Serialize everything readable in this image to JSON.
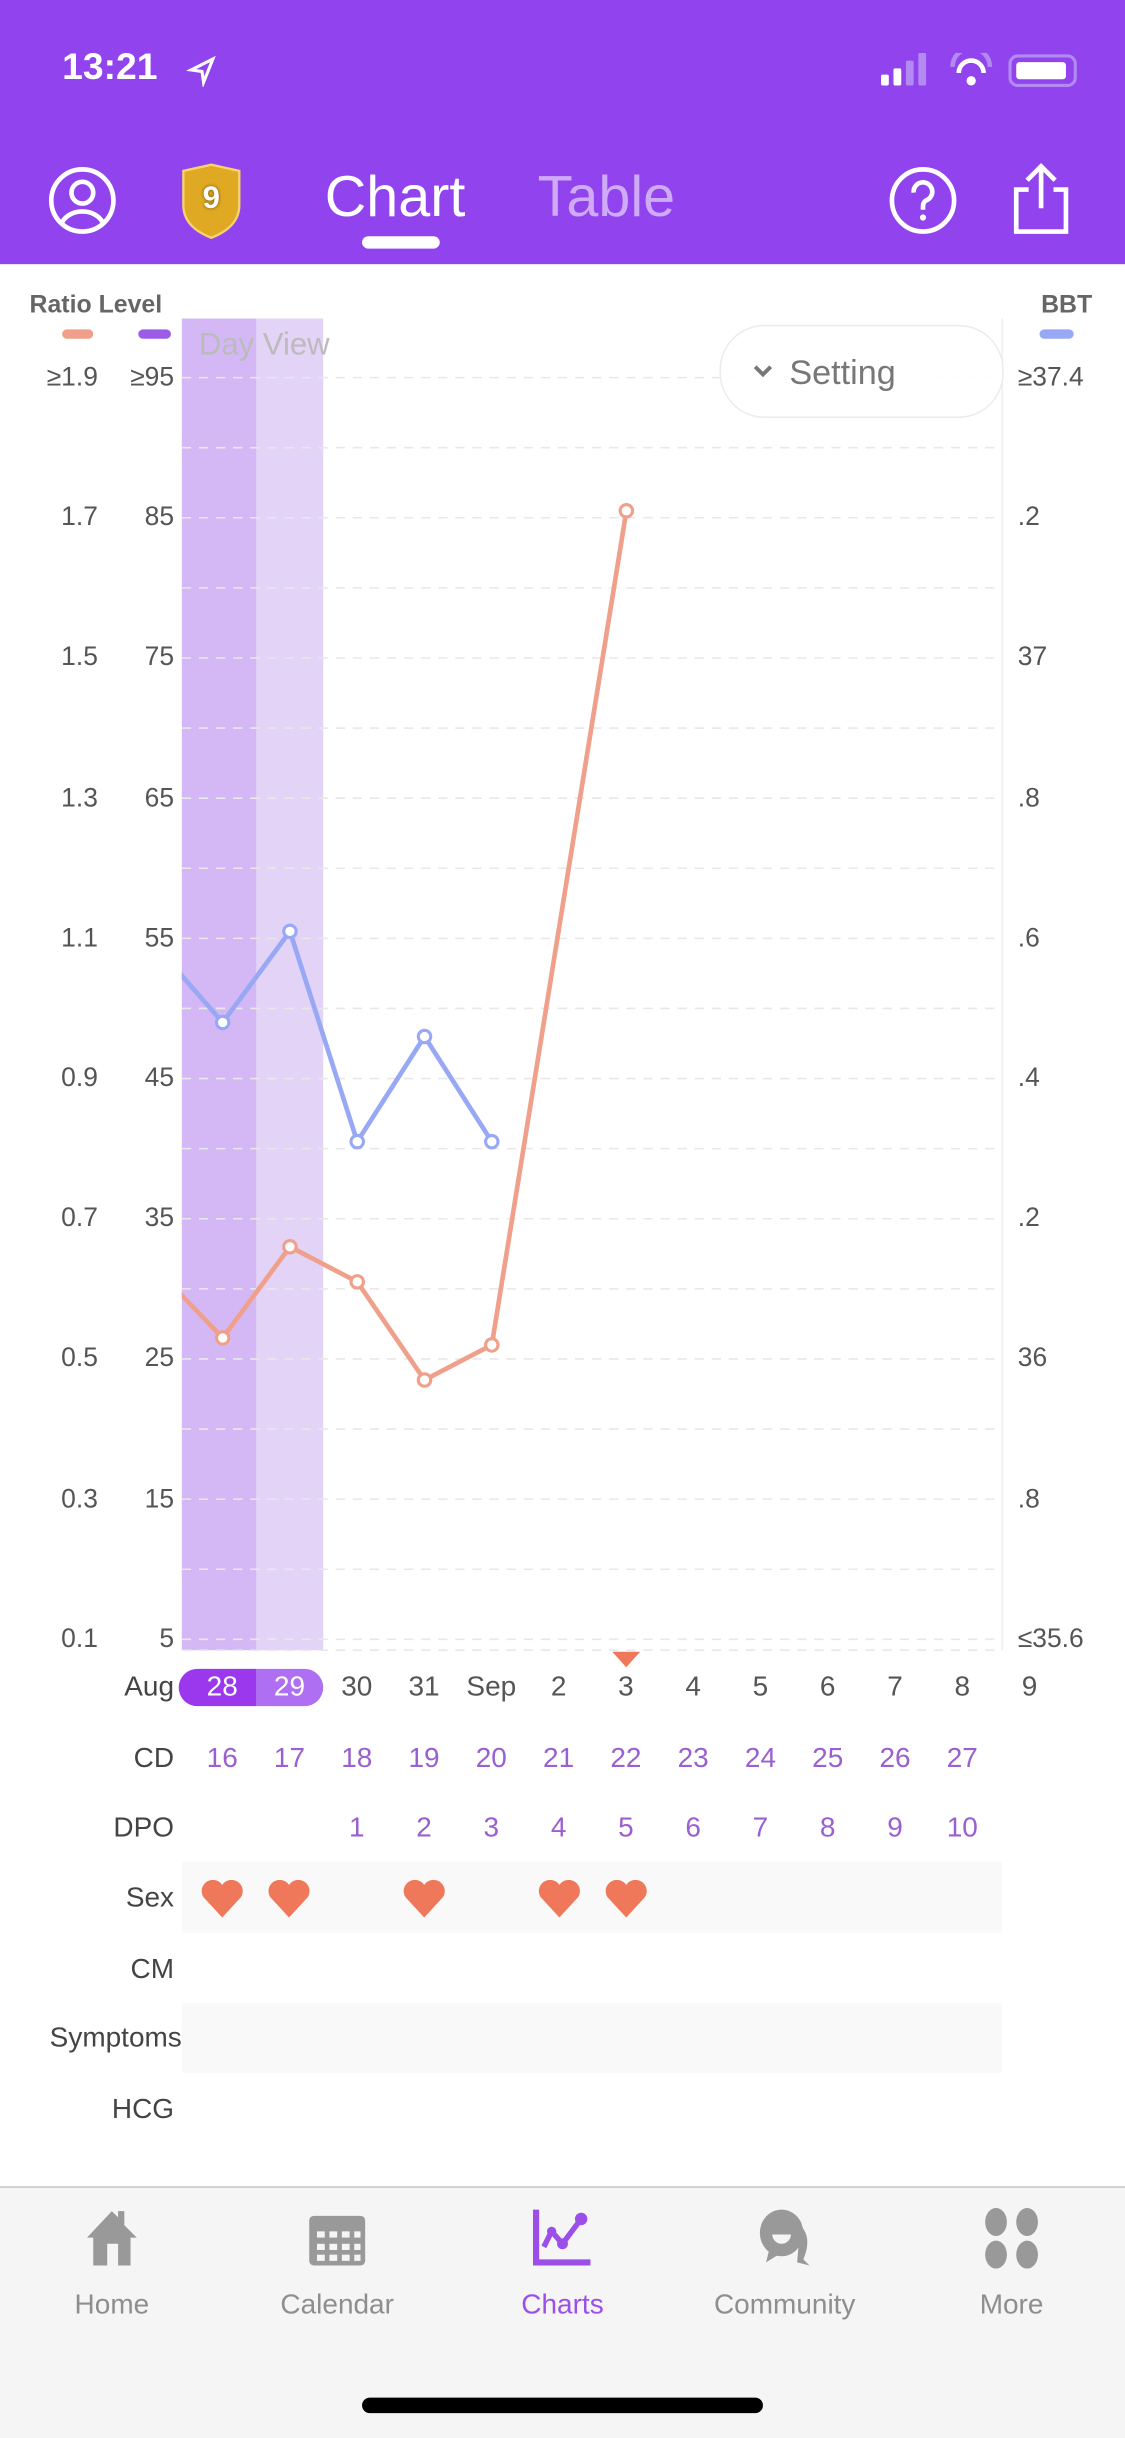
{
  "status_bar": {
    "time": "13:21"
  },
  "header": {
    "badge_level": "9",
    "tabs": [
      {
        "label": "Chart",
        "active": true
      },
      {
        "label": "Table",
        "active": false
      }
    ]
  },
  "legend": {
    "left_title": "Ratio Level",
    "right_title": "BBT",
    "day_view": "Day View",
    "setting_label": "Setting"
  },
  "colors": {
    "brand": "#9143ed",
    "ratio": "#f0a08a",
    "level": "#9b5de5",
    "bbt": "#98a8f4",
    "heart": "#ef775a",
    "cd_text": "#9a5fd0"
  },
  "axes": {
    "ratio_ticks": [
      "≥1.9",
      "1.7",
      "1.5",
      "1.3",
      "1.1",
      "0.9",
      "0.7",
      "0.5",
      "0.3",
      "0.1"
    ],
    "level_ticks": [
      "≥95",
      "85",
      "75",
      "65",
      "55",
      "45",
      "35",
      "25",
      "15",
      "5"
    ],
    "bbt_ticks": [
      "≥37.4",
      ".2",
      "37",
      ".8",
      ".6",
      ".4",
      ".2",
      "36",
      ".8",
      "≤35.6"
    ]
  },
  "dates": {
    "month_label": "Aug",
    "days": [
      "28",
      "29",
      "30",
      "31",
      "Sep",
      "2",
      "3",
      "4",
      "5",
      "6",
      "7",
      "8",
      "9"
    ],
    "selected": [
      "28",
      "29"
    ]
  },
  "rows": {
    "cd_label": "CD",
    "cd": [
      "16",
      "17",
      "18",
      "19",
      "20",
      "21",
      "22",
      "23",
      "24",
      "25",
      "26",
      "27"
    ],
    "dpo_label": "DPO",
    "dpo": [
      "",
      "",
      "1",
      "2",
      "3",
      "4",
      "5",
      "6",
      "7",
      "8",
      "9",
      "10"
    ],
    "sex_label": "Sex",
    "sex": [
      true,
      true,
      false,
      true,
      false,
      true,
      true,
      false,
      false,
      false,
      false,
      false
    ],
    "cm_label": "CM",
    "symptoms_label": "Symptoms",
    "hcg_label": "HCG"
  },
  "chart_data": {
    "type": "line",
    "x": [
      "Aug 27",
      "Aug 28",
      "Aug 29",
      "Aug 30",
      "Aug 31",
      "Sep 1",
      "Sep 2",
      "Sep 3"
    ],
    "series": [
      {
        "name": "Ratio",
        "axis": "left",
        "values": [
          0.63,
          0.53,
          0.66,
          0.61,
          0.47,
          0.52,
          null,
          1.71
        ]
      },
      {
        "name": "BBT",
        "axis": "right",
        "values": [
          36.59,
          36.48,
          36.61,
          36.31,
          36.46,
          36.31,
          null,
          null
        ]
      }
    ],
    "ratio_range": [
      0.1,
      1.9
    ],
    "level_range": [
      5,
      95
    ],
    "bbt_range": [
      35.6,
      37.4
    ],
    "marker_day": "Sep 3",
    "grid": true
  },
  "bottom_nav": [
    {
      "label": "Home",
      "icon": "home-icon"
    },
    {
      "label": "Calendar",
      "icon": "calendar-icon"
    },
    {
      "label": "Charts",
      "icon": "charts-icon",
      "active": true
    },
    {
      "label": "Community",
      "icon": "community-icon"
    },
    {
      "label": "More",
      "icon": "more-icon"
    }
  ]
}
